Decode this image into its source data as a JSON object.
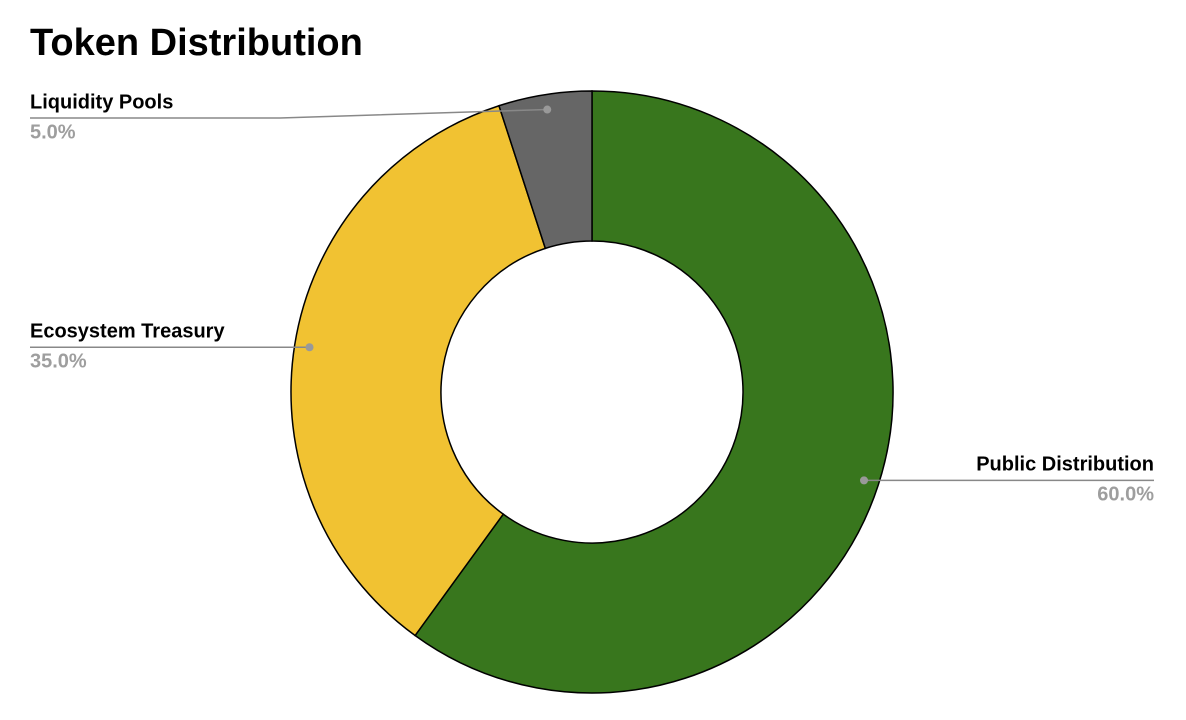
{
  "chart_data": {
    "type": "pie",
    "donut": true,
    "title": "Token Distribution",
    "categories": [
      "Public Distribution",
      "Ecosystem Treasury",
      "Liquidity Pools"
    ],
    "values": [
      60,
      35,
      5
    ],
    "value_labels": [
      "60.0%",
      "35.0%",
      "5.0%"
    ],
    "colors": [
      "#38761d",
      "#f1c232",
      "#666666"
    ]
  }
}
